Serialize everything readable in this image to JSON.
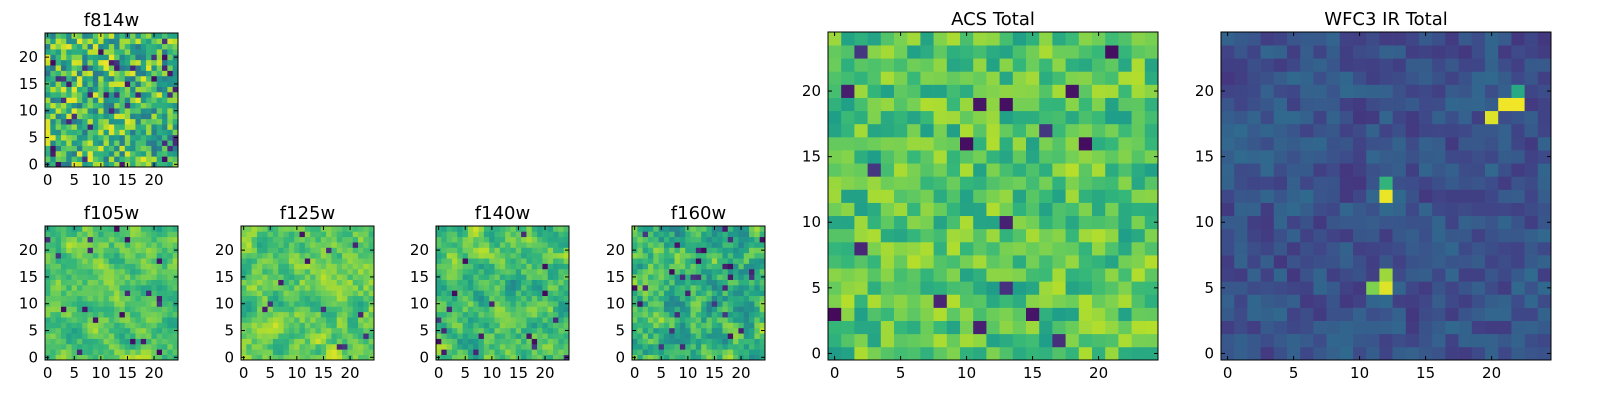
{
  "figure": {
    "description_free": true
  },
  "colormap": {
    "name": "viridis",
    "stops": [
      "#440154",
      "#482878",
      "#3e4989",
      "#31688e",
      "#26828e",
      "#1f9e89",
      "#35b779",
      "#6ece58",
      "#b5de2b",
      "#fde725"
    ]
  },
  "chart_data": [
    {
      "type": "heatmap",
      "title": "f814w",
      "grid_size": 25,
      "xticks": [
        0,
        5,
        10,
        15,
        20
      ],
      "yticks": [
        0,
        5,
        10,
        15,
        20
      ],
      "xlim": [
        -0.5,
        24.5
      ],
      "ylim": [
        -0.5,
        24.5
      ],
      "value_range": [
        0,
        1
      ],
      "field_model": {
        "seed": 814,
        "mean": 0.68,
        "noise": 0.3,
        "smooth": 0.05,
        "dark_fraction": 0.05,
        "peaks": []
      }
    },
    {
      "type": "heatmap",
      "title": "f105w",
      "grid_size": 25,
      "xticks": [
        0,
        5,
        10,
        15,
        20
      ],
      "yticks": [
        0,
        5,
        10,
        15,
        20
      ],
      "xlim": [
        -0.5,
        24.5
      ],
      "ylim": [
        -0.5,
        24.5
      ],
      "value_range": [
        0,
        1
      ],
      "field_model": {
        "seed": 105,
        "mean": 0.72,
        "noise": 0.2,
        "smooth": 0.6,
        "dark_fraction": 0.03,
        "peaks": []
      }
    },
    {
      "type": "heatmap",
      "title": "f125w",
      "grid_size": 25,
      "xticks": [
        0,
        5,
        10,
        15,
        20
      ],
      "yticks": [
        0,
        5,
        10,
        15,
        20
      ],
      "xlim": [
        -0.5,
        24.5
      ],
      "ylim": [
        -0.5,
        24.5
      ],
      "value_range": [
        0,
        1
      ],
      "field_model": {
        "seed": 125,
        "mean": 0.75,
        "noise": 0.22,
        "smooth": 0.6,
        "dark_fraction": 0.02,
        "peaks": []
      }
    },
    {
      "type": "heatmap",
      "title": "f140w",
      "grid_size": 25,
      "xticks": [
        0,
        5,
        10,
        15,
        20
      ],
      "yticks": [
        0,
        5,
        10,
        15,
        20
      ],
      "xlim": [
        -0.5,
        24.5
      ],
      "ylim": [
        -0.5,
        24.5
      ],
      "value_range": [
        0,
        1
      ],
      "field_model": {
        "seed": 140,
        "mean": 0.7,
        "noise": 0.24,
        "smooth": 0.6,
        "dark_fraction": 0.03,
        "peaks": []
      }
    },
    {
      "type": "heatmap",
      "title": "f160w",
      "grid_size": 25,
      "xticks": [
        0,
        5,
        10,
        15,
        20
      ],
      "yticks": [
        0,
        5,
        10,
        15,
        20
      ],
      "xlim": [
        -0.5,
        24.5
      ],
      "ylim": [
        -0.5,
        24.5
      ],
      "value_range": [
        0,
        1
      ],
      "field_model": {
        "seed": 160,
        "mean": 0.65,
        "noise": 0.28,
        "smooth": 0.55,
        "dark_fraction": 0.04,
        "peaks": []
      }
    },
    {
      "type": "heatmap",
      "title": "ACS Total",
      "grid_size": 25,
      "xticks": [
        0,
        5,
        10,
        15,
        20
      ],
      "yticks": [
        0,
        5,
        10,
        15,
        20
      ],
      "xlim": [
        -0.5,
        24.5
      ],
      "ylim": [
        -0.5,
        24.5
      ],
      "value_range": [
        0,
        1
      ],
      "field_model": {
        "seed": 7,
        "mean": 0.72,
        "noise": 0.18,
        "smooth": 0.1,
        "dark_fraction": 0.03,
        "peaks": []
      }
    },
    {
      "type": "heatmap",
      "title": "WFC3 IR Total",
      "grid_size": 25,
      "xticks": [
        0,
        5,
        10,
        15,
        20
      ],
      "yticks": [
        0,
        5,
        10,
        15,
        20
      ],
      "xlim": [
        -0.5,
        24.5
      ],
      "ylim": [
        -0.5,
        24.5
      ],
      "value_range": [
        0,
        1
      ],
      "field_model": {
        "seed": 33,
        "mean": 0.25,
        "noise": 0.1,
        "smooth": 0.2,
        "dark_fraction": 0.0,
        "peaks": [
          {
            "x": 12,
            "y": 12,
            "value": 0.97
          },
          {
            "x": 12,
            "y": 13,
            "value": 0.65
          },
          {
            "x": 12,
            "y": 5,
            "value": 0.95
          },
          {
            "x": 12,
            "y": 6,
            "value": 0.85
          },
          {
            "x": 11,
            "y": 5,
            "value": 0.8
          },
          {
            "x": 21,
            "y": 19,
            "value": 0.98
          },
          {
            "x": 22,
            "y": 19,
            "value": 0.98
          },
          {
            "x": 20,
            "y": 18,
            "value": 0.95
          },
          {
            "x": 22,
            "y": 20,
            "value": 0.6
          }
        ]
      }
    }
  ]
}
